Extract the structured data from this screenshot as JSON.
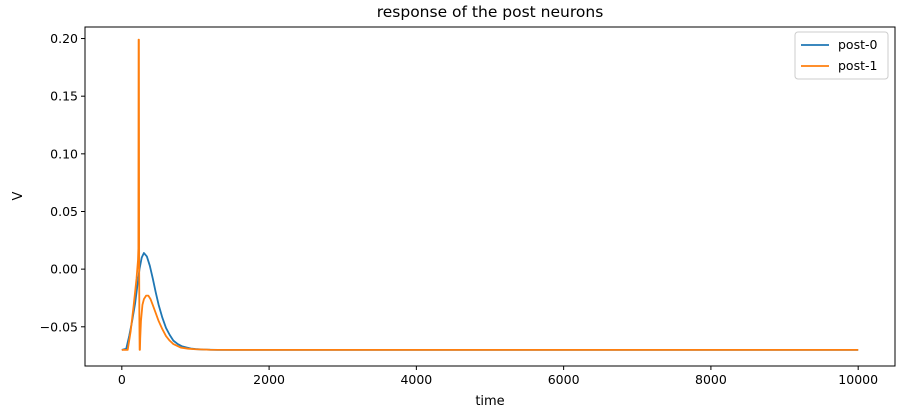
{
  "chart_data": {
    "type": "line",
    "title": "response of the post neurons",
    "xlabel": "time",
    "ylabel": "V",
    "xlim": [
      -500,
      10500
    ],
    "ylim": [
      -0.084,
      0.21
    ],
    "xticks": [
      0,
      2000,
      4000,
      6000,
      8000,
      10000
    ],
    "xtick_labels": [
      "0",
      "2000",
      "4000",
      "6000",
      "8000",
      "10000"
    ],
    "yticks": [
      -0.05,
      0.0,
      0.05,
      0.1,
      0.15,
      0.2
    ],
    "ytick_labels": [
      "−0.05",
      "0.00",
      "0.05",
      "0.10",
      "0.15",
      "0.20"
    ],
    "grid": false,
    "legend_position": "top-right",
    "series": [
      {
        "name": "post-0",
        "color": "#1f77b4",
        "x": [
          0,
          60,
          100,
          140,
          180,
          210,
          240,
          270,
          300,
          340,
          380,
          420,
          460,
          500,
          550,
          600,
          650,
          700,
          760,
          820,
          880,
          950,
          1000,
          1100,
          1200,
          1300,
          1400,
          1500,
          1800,
          2500,
          4000,
          6000,
          8000,
          10000
        ],
        "y": [
          -0.07,
          -0.069,
          -0.058,
          -0.045,
          -0.03,
          -0.015,
          0.0,
          0.01,
          0.014,
          0.011,
          0.003,
          -0.008,
          -0.02,
          -0.031,
          -0.042,
          -0.051,
          -0.057,
          -0.062,
          -0.065,
          -0.067,
          -0.068,
          -0.069,
          -0.0693,
          -0.0697,
          -0.0699,
          -0.07,
          -0.07,
          -0.07,
          -0.07,
          -0.07,
          -0.07,
          -0.07,
          -0.07,
          -0.07
        ]
      },
      {
        "name": "post-1",
        "color": "#ff7f0e",
        "x": [
          0,
          80,
          120,
          160,
          200,
          220,
          225,
          228,
          232,
          235,
          238,
          242,
          246,
          250,
          260,
          280,
          300,
          330,
          360,
          390,
          420,
          460,
          500,
          550,
          600,
          650,
          700,
          800,
          900,
          1000,
          1200,
          1500,
          2000,
          4000,
          6000,
          8000,
          10000
        ],
        "y": [
          -0.07,
          -0.07,
          -0.054,
          -0.032,
          -0.008,
          0.008,
          0.018,
          0.199,
          0.199,
          0.012,
          -0.04,
          -0.07,
          -0.07,
          -0.06,
          -0.045,
          -0.031,
          -0.026,
          -0.023,
          -0.023,
          -0.026,
          -0.031,
          -0.038,
          -0.045,
          -0.052,
          -0.058,
          -0.062,
          -0.065,
          -0.068,
          -0.069,
          -0.0695,
          -0.0699,
          -0.07,
          -0.07,
          -0.07,
          -0.07,
          -0.07,
          -0.07
        ]
      }
    ]
  }
}
